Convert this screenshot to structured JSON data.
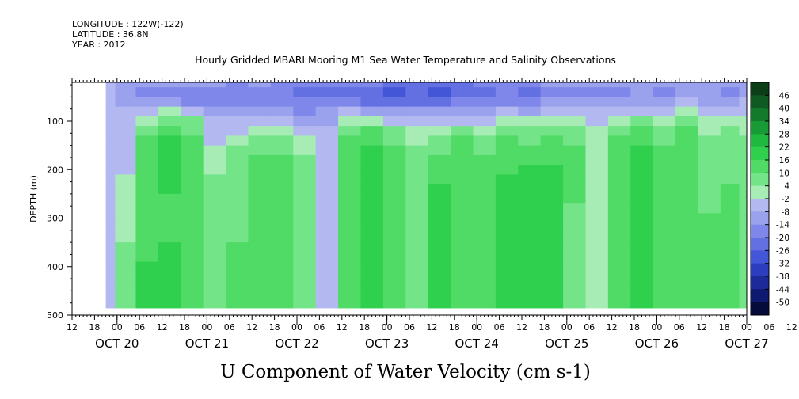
{
  "header": {
    "longitude": "LONGITUDE : 122W(-122)",
    "latitude": "LATITUDE : 36.8N",
    "year": "YEAR : 2012",
    "title": "Hourly Gridded MBARI Mooring M1 Sea Water Temperature and Salinity Observations"
  },
  "chart_data": {
    "type": "heatmap",
    "title": "Hourly Gridded MBARI Mooring M1 Sea Water Temperature and Salinity Observations",
    "variable_label": "U Component of Water Velocity (cm s-1)",
    "ylabel": "DEPTH (m)",
    "ylim": [
      500,
      20
    ],
    "y_inverted": true,
    "y_ticks": [
      100,
      200,
      300,
      400,
      500
    ],
    "xlim_hours": [
      -12,
      168
    ],
    "hour_ticks": [
      "12",
      "18",
      "00",
      "06",
      "12",
      "18",
      "00",
      "06",
      "12",
      "18",
      "00",
      "06",
      "12",
      "18",
      "00",
      "06",
      "12",
      "18",
      "00",
      "06",
      "12",
      "18",
      "00",
      "06",
      "12",
      "18",
      "00",
      "06",
      "12",
      "18",
      "00",
      "06",
      "12"
    ],
    "day_labels": [
      "OCT 20",
      "OCT 21",
      "OCT 22",
      "OCT 23",
      "OCT 24",
      "OCT 25",
      "OCT 26",
      "OCT 27"
    ],
    "data_x_range_hours": [
      -3,
      168
    ],
    "data_depth_range_m": [
      20,
      485
    ],
    "colorbar_labels": [
      "46",
      "40",
      "34",
      "28",
      "22",
      "16",
      "10",
      "4",
      "-2",
      "-8",
      "-14",
      "-20",
      "-26",
      "-32",
      "-38",
      "-44",
      "-50"
    ],
    "colorbar_colors": [
      "#0b3d16",
      "#0f5a22",
      "#137a2c",
      "#189a36",
      "#1fb940",
      "#2fd04e",
      "#4fdb65",
      "#74e489",
      "#a6ecb4",
      "#b4b8f0",
      "#9aa2ee",
      "#7f88ea",
      "#6270e2",
      "#4456d8",
      "#2d3dbf",
      "#1c2a9a",
      "#0e1970",
      "#050b3a"
    ],
    "profile_columns": [
      {
        "hour": -3,
        "u": [
          -6,
          -5,
          -4,
          -4,
          -3,
          -3,
          -2,
          -2,
          -2,
          -2,
          -2,
          -2,
          -3,
          -3,
          -3,
          -3,
          -2,
          -2,
          -2,
          -2,
          -2,
          -2,
          -3,
          -3
        ]
      },
      {
        "hour": 2,
        "u": [
          -8,
          -12,
          -10,
          -6,
          -2,
          -2,
          -2,
          -3,
          -3,
          -2,
          -1,
          0,
          1,
          1,
          2,
          3,
          4,
          5,
          6,
          8,
          8,
          9,
          10,
          10
        ]
      },
      {
        "hour": 8,
        "u": [
          -10,
          -14,
          -12,
          -6,
          2,
          8,
          12,
          14,
          15,
          16,
          16,
          16,
          15,
          15,
          14,
          14,
          14,
          15,
          16,
          18,
          18,
          18,
          18,
          18
        ]
      },
      {
        "hour": 14,
        "u": [
          -10,
          -14,
          -10,
          2,
          10,
          16,
          18,
          18,
          18,
          18,
          18,
          17,
          16,
          16,
          16,
          16,
          16,
          18,
          20,
          20,
          20,
          20,
          20,
          20
        ]
      },
      {
        "hour": 20,
        "u": [
          -12,
          -16,
          -14,
          -4,
          6,
          10,
          12,
          12,
          12,
          12,
          12,
          12,
          12,
          12,
          14,
          14,
          14,
          14,
          14,
          14,
          14,
          12,
          12,
          12
        ]
      },
      {
        "hour": 26,
        "u": [
          -12,
          -16,
          -16,
          -10,
          -6,
          -4,
          -2,
          0,
          2,
          4,
          6,
          6,
          6,
          6,
          6,
          6,
          6,
          6,
          6,
          6,
          6,
          6,
          6,
          6
        ]
      },
      {
        "hour": 32,
        "u": [
          -14,
          -18,
          -18,
          -12,
          -6,
          -2,
          2,
          6,
          8,
          10,
          10,
          10,
          10,
          10,
          10,
          10,
          10,
          12,
          12,
          12,
          12,
          12,
          12,
          12
        ]
      },
      {
        "hour": 38,
        "u": [
          -12,
          -16,
          -14,
          -8,
          -2,
          4,
          8,
          10,
          12,
          14,
          14,
          16,
          16,
          16,
          16,
          16,
          16,
          16,
          16,
          16,
          16,
          16,
          16,
          16
        ]
      },
      {
        "hour": 44,
        "u": [
          -14,
          -18,
          -18,
          -12,
          -4,
          2,
          6,
          10,
          12,
          12,
          12,
          12,
          12,
          12,
          12,
          12,
          12,
          12,
          12,
          12,
          12,
          12,
          12,
          12
        ]
      },
      {
        "hour": 50,
        "u": [
          -14,
          -20,
          -18,
          -14,
          -8,
          -2,
          2,
          4,
          6,
          6,
          6,
          6,
          6,
          6,
          6,
          6,
          6,
          6,
          6,
          6,
          6,
          6,
          6,
          6
        ]
      },
      {
        "hour": 56,
        "u": [
          -18,
          -22,
          -18,
          -12,
          -8,
          -4,
          -4,
          -2,
          -2,
          -2,
          -2,
          -2,
          -4,
          -4,
          -4,
          -4,
          -4,
          -2,
          -2,
          -2,
          -2,
          -2,
          -2,
          -2
        ]
      },
      {
        "hour": 62,
        "u": [
          -16,
          -20,
          -16,
          -6,
          2,
          10,
          14,
          16,
          16,
          16,
          16,
          16,
          14,
          14,
          14,
          14,
          14,
          16,
          16,
          16,
          16,
          16,
          16,
          16
        ]
      },
      {
        "hour": 68,
        "u": [
          -18,
          -24,
          -20,
          -8,
          4,
          12,
          16,
          18,
          18,
          18,
          18,
          20,
          22,
          22,
          22,
          22,
          22,
          22,
          22,
          20,
          20,
          20,
          20,
          20
        ]
      },
      {
        "hour": 74,
        "u": [
          -22,
          -26,
          -22,
          -12,
          -2,
          6,
          10,
          12,
          12,
          12,
          12,
          14,
          14,
          14,
          14,
          14,
          14,
          14,
          14,
          14,
          14,
          14,
          14,
          14
        ]
      },
      {
        "hour": 80,
        "u": [
          -20,
          -24,
          -20,
          -12,
          -4,
          2,
          4,
          6,
          6,
          8,
          8,
          8,
          8,
          8,
          10,
          10,
          10,
          10,
          10,
          10,
          10,
          8,
          8,
          8
        ]
      },
      {
        "hour": 86,
        "u": [
          -20,
          -26,
          -22,
          -12,
          -4,
          2,
          6,
          10,
          12,
          14,
          16,
          18,
          20,
          20,
          20,
          20,
          20,
          18,
          18,
          18,
          18,
          18,
          18,
          18
        ]
      },
      {
        "hour": 92,
        "u": [
          -22,
          -24,
          -18,
          -10,
          -2,
          6,
          12,
          14,
          16,
          16,
          16,
          16,
          16,
          16,
          16,
          16,
          14,
          14,
          14,
          14,
          14,
          14,
          14,
          14
        ]
      },
      {
        "hour": 98,
        "u": [
          -18,
          -22,
          -18,
          -10,
          -4,
          2,
          6,
          10,
          12,
          14,
          14,
          14,
          14,
          14,
          14,
          14,
          14,
          14,
          14,
          14,
          14,
          14,
          14,
          14
        ]
      },
      {
        "hour": 104,
        "u": [
          -14,
          -18,
          -14,
          -6,
          2,
          8,
          12,
          14,
          16,
          16,
          18,
          18,
          18,
          18,
          18,
          18,
          18,
          18,
          18,
          18,
          18,
          18,
          18,
          18
        ]
      },
      {
        "hour": 110,
        "u": [
          -16,
          -20,
          -16,
          -8,
          0,
          6,
          10,
          14,
          16,
          18,
          20,
          20,
          20,
          18,
          18,
          18,
          18,
          18,
          18,
          18,
          18,
          18,
          18,
          18
        ]
      },
      {
        "hour": 116,
        "u": [
          -12,
          -16,
          -12,
          -4,
          4,
          10,
          14,
          16,
          16,
          18,
          18,
          18,
          18,
          18,
          18,
          18,
          18,
          18,
          18,
          18,
          18,
          18,
          18,
          18
        ]
      },
      {
        "hour": 122,
        "u": [
          -10,
          -14,
          -10,
          -2,
          4,
          8,
          10,
          12,
          12,
          12,
          12,
          12,
          12,
          10,
          10,
          10,
          10,
          10,
          10,
          10,
          10,
          10,
          10,
          10
        ]
      },
      {
        "hour": 128,
        "u": [
          -12,
          -16,
          -12,
          -6,
          -2,
          0,
          0,
          2,
          2,
          2,
          2,
          2,
          2,
          2,
          2,
          2,
          2,
          2,
          2,
          2,
          2,
          2,
          2,
          2
        ]
      },
      {
        "hour": 134,
        "u": [
          -10,
          -14,
          -10,
          -4,
          2,
          8,
          12,
          14,
          16,
          16,
          16,
          16,
          16,
          16,
          16,
          16,
          16,
          16,
          16,
          16,
          16,
          16,
          16,
          16
        ]
      },
      {
        "hour": 140,
        "u": [
          -8,
          -12,
          -8,
          -2,
          6,
          12,
          16,
          18,
          18,
          18,
          18,
          18,
          18,
          18,
          18,
          18,
          18,
          18,
          18,
          18,
          18,
          18,
          18,
          18
        ]
      },
      {
        "hour": 146,
        "u": [
          -12,
          -14,
          -10,
          -4,
          2,
          6,
          10,
          12,
          12,
          14,
          14,
          14,
          14,
          14,
          14,
          14,
          14,
          14,
          14,
          14,
          14,
          14,
          14,
          14
        ]
      },
      {
        "hour": 152,
        "u": [
          -8,
          -12,
          -6,
          2,
          10,
          14,
          16,
          16,
          16,
          16,
          16,
          16,
          16,
          16,
          16,
          14,
          14,
          14,
          14,
          14,
          14,
          14,
          14,
          14
        ]
      },
      {
        "hour": 158,
        "u": [
          -10,
          -12,
          -8,
          -2,
          2,
          4,
          6,
          6,
          8,
          8,
          8,
          10,
          10,
          10,
          12,
          12,
          12,
          12,
          12,
          12,
          12,
          12,
          12,
          12
        ]
      },
      {
        "hour": 164,
        "u": [
          -12,
          -14,
          -10,
          -4,
          2,
          6,
          8,
          8,
          10,
          10,
          10,
          12,
          12,
          12,
          12,
          12,
          12,
          12,
          12,
          12,
          12,
          12,
          12,
          12
        ]
      },
      {
        "hour": 168,
        "u": [
          -8,
          -10,
          -6,
          -2,
          2,
          4,
          6,
          8,
          8,
          8,
          8,
          8,
          8,
          8,
          8,
          8,
          8,
          8,
          8,
          8,
          8,
          8,
          8,
          8
        ]
      }
    ],
    "profile_depths_m": [
      20,
      40,
      60,
      80,
      100,
      120,
      140,
      160,
      180,
      200,
      220,
      240,
      260,
      280,
      300,
      320,
      340,
      360,
      380,
      400,
      420,
      440,
      460,
      485
    ]
  }
}
